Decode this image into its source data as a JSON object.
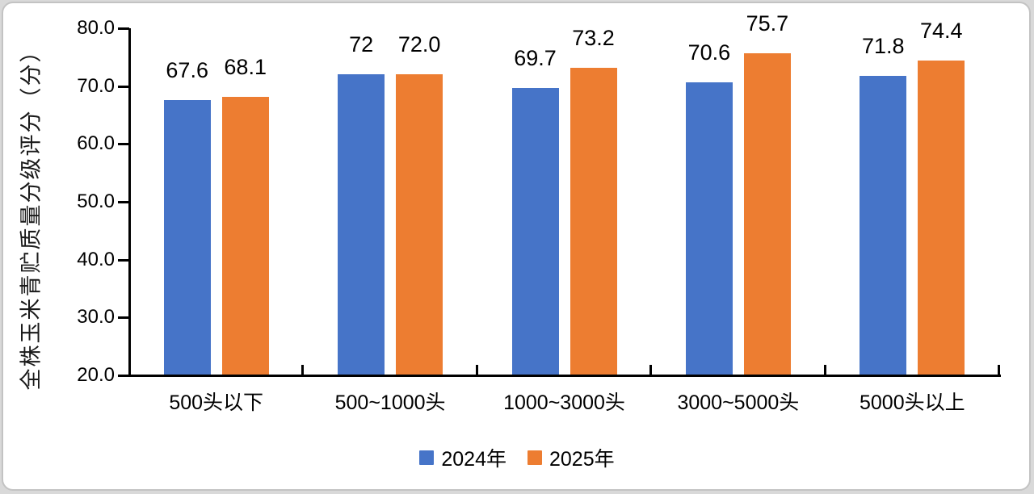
{
  "chart_data": {
    "type": "bar",
    "title": "",
    "categories": [
      "500头以下",
      "500~1000头",
      "1000~3000头",
      "3000~5000头",
      "5000头以上"
    ],
    "series": [
      {
        "name": "2024年",
        "color": "#4674C8",
        "values": [
          67.6,
          72,
          69.7,
          70.6,
          71.8
        ],
        "labels": [
          "67.6",
          "72",
          "69.7",
          "70.6",
          "71.8"
        ]
      },
      {
        "name": "2025年",
        "color": "#ED7D31",
        "values": [
          68.1,
          72.0,
          73.2,
          75.7,
          74.4
        ],
        "labels": [
          "68.1",
          "72.0",
          "73.2",
          "75.7",
          "74.4"
        ]
      }
    ],
    "xlabel": "",
    "ylabel": "全株玉米青贮质量分级评分（分）",
    "ylim": [
      20,
      80
    ],
    "ytick_step": 10,
    "ytick_labels": [
      "20.0",
      "30.0",
      "40.0",
      "50.0",
      "60.0",
      "70.0",
      "80.0"
    ],
    "grid": false,
    "legend_position": "bottom",
    "axis_color": "#000000",
    "background_color": "#ffffff"
  }
}
